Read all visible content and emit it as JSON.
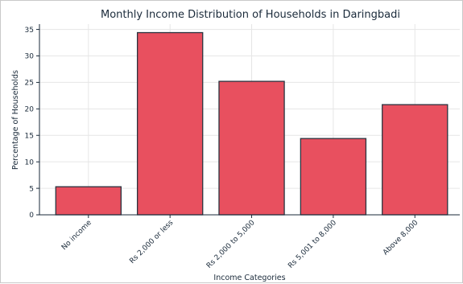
{
  "chart_data": {
    "type": "bar",
    "title": "Monthly Income Distribution of Households in Daringbadi",
    "xlabel": "Income Categories",
    "ylabel": "Percentage of Households",
    "categories": [
      "No income",
      "Rs 2,000 or less",
      "Rs 2,000 to 5,000",
      "Rs 5,001 to 8,000",
      "Above 8,000"
    ],
    "values": [
      5.3,
      34.4,
      25.2,
      14.4,
      20.8
    ],
    "ylim": [
      0,
      36
    ],
    "yticks": [
      0,
      5,
      10,
      15,
      20,
      25,
      30,
      35
    ],
    "grid": true,
    "colors": {
      "bar": "#e8505f",
      "edge": "#2b3440",
      "grid": "#e6e6e6"
    }
  }
}
